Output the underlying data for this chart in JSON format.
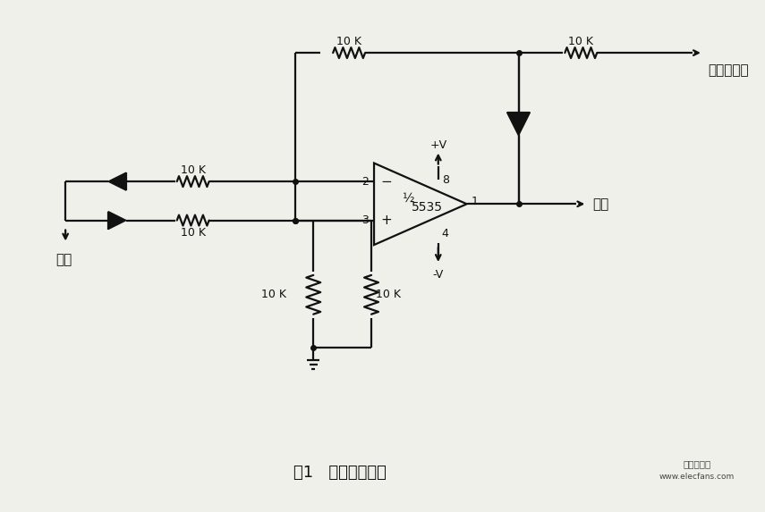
{
  "title": "图1   绝对值放大器",
  "label_output": "输出",
  "label_input": "输入",
  "label_neg_voltage": "负极性电压",
  "label_10k_top_left": "10 K",
  "label_10k_top_right": "10 K",
  "label_10k_upper": "10 K",
  "label_10k_lower": "10 K",
  "label_10k_r3": "10 K",
  "label_10k_r4": "10 K",
  "label_plus_v": "+V",
  "label_minus_v": "-V",
  "label_pin2": "2",
  "label_pin3": "3",
  "label_pin1": "1",
  "label_pin4": "4",
  "label_pin8": "8",
  "label_ic": "5535",
  "label_ic_half": "½",
  "bg_color": "#f0f0eb",
  "line_color": "#111111",
  "text_color": "#111111",
  "watermark_line1": "电子发烧友",
  "watermark_line2": "www.elecfans.com"
}
